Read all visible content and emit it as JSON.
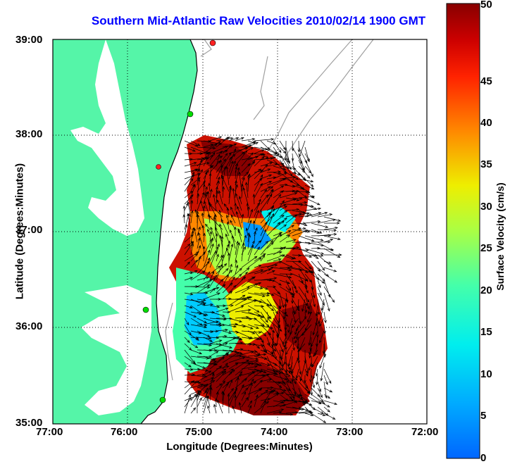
{
  "title": "Southern Mid-Atlantic Raw Velocities 2010/02/14 1900 GMT",
  "xlabel": "Longitude (Degrees:Minutes)",
  "ylabel": "Latitude (Degrees:Minutes)",
  "colorbar": {
    "label": "Surface Velocity (cm/s)",
    "ticks": [
      "0",
      "5",
      "10",
      "15",
      "20",
      "25",
      "30",
      "35",
      "40",
      "45",
      "50"
    ],
    "range": [
      0,
      50
    ],
    "colormap": "jet"
  },
  "map": {
    "xticks": [
      "77:00",
      "76:00",
      "75:00",
      "74:00",
      "73:00",
      "72:00"
    ],
    "yticks": [
      "39:00",
      "38:00",
      "37:00",
      "36:00",
      "35:00"
    ],
    "lon_range": [
      -77,
      -72
    ],
    "lat_range": [
      35,
      39
    ],
    "grid": "dotted",
    "land_color": "#55f5a8",
    "water_color": "#ffffff",
    "bathymetry_color": "#a0a0a0",
    "vector_color": "#000000",
    "station_colors": [
      "#00dd00",
      "#ff2222"
    ]
  }
}
